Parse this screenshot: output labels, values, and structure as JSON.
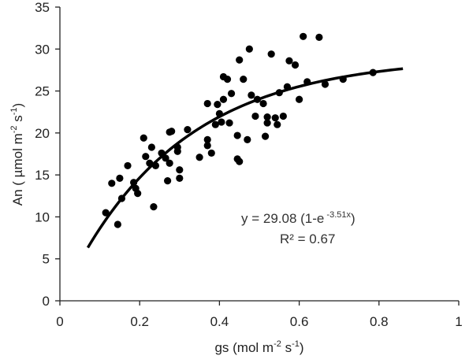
{
  "chart_data": {
    "type": "scatter",
    "title": "",
    "xlabel": {
      "base": "gs (mol m",
      "sup1": "-2",
      "mid": " s",
      "sup2": "-1",
      "end": ")"
    },
    "ylabel": {
      "base": "An ( µmol m",
      "sup1": "-2",
      "mid": " s",
      "sup2": "-1",
      "end": ")"
    },
    "xlim": [
      0,
      1
    ],
    "ylim": [
      0,
      35
    ],
    "xticks": [
      0,
      0.2,
      0.4,
      0.6,
      0.8,
      1
    ],
    "xtick_labels": [
      "0",
      "0.2",
      "0.4",
      "0.6",
      "0.8",
      "1"
    ],
    "yticks": [
      0,
      5,
      10,
      15,
      20,
      25,
      30,
      35
    ],
    "ytick_labels": [
      "0",
      "5",
      "10",
      "15",
      "20",
      "25",
      "30",
      "35"
    ],
    "grid": false,
    "legend": "none",
    "annotations": {
      "equation_prefix": "y = 29.08 (1-e",
      "equation_exponent": " -3.51x",
      "equation_suffix": ")",
      "r2_text": "R² = 0.67"
    },
    "fit": {
      "type": "line",
      "a": 29.08,
      "b": 3.51,
      "x_range": [
        0.07,
        0.86
      ]
    },
    "series": [
      {
        "points": [
          [
            0.115,
            10.5
          ],
          [
            0.13,
            14.0
          ],
          [
            0.145,
            9.1
          ],
          [
            0.15,
            14.6
          ],
          [
            0.155,
            12.2
          ],
          [
            0.17,
            16.1
          ],
          [
            0.185,
            14.1
          ],
          [
            0.19,
            13.4
          ],
          [
            0.195,
            12.8
          ],
          [
            0.21,
            19.4
          ],
          [
            0.215,
            17.2
          ],
          [
            0.225,
            16.4
          ],
          [
            0.23,
            18.3
          ],
          [
            0.235,
            11.2
          ],
          [
            0.24,
            16.1
          ],
          [
            0.255,
            17.6
          ],
          [
            0.265,
            17.0
          ],
          [
            0.27,
            14.3
          ],
          [
            0.275,
            16.4
          ],
          [
            0.275,
            20.1
          ],
          [
            0.28,
            20.2
          ],
          [
            0.295,
            18.3
          ],
          [
            0.295,
            17.8
          ],
          [
            0.3,
            15.6
          ],
          [
            0.3,
            14.6
          ],
          [
            0.32,
            20.4
          ],
          [
            0.35,
            17.1
          ],
          [
            0.37,
            23.5
          ],
          [
            0.37,
            19.2
          ],
          [
            0.37,
            18.5
          ],
          [
            0.38,
            17.6
          ],
          [
            0.39,
            21.0
          ],
          [
            0.395,
            23.4
          ],
          [
            0.4,
            22.3
          ],
          [
            0.405,
            21.3
          ],
          [
            0.41,
            24.0
          ],
          [
            0.41,
            26.7
          ],
          [
            0.42,
            26.4
          ],
          [
            0.425,
            21.2
          ],
          [
            0.43,
            24.7
          ],
          [
            0.445,
            19.7
          ],
          [
            0.445,
            16.9
          ],
          [
            0.45,
            16.6
          ],
          [
            0.45,
            28.7
          ],
          [
            0.46,
            26.4
          ],
          [
            0.47,
            19.2
          ],
          [
            0.475,
            30.0
          ],
          [
            0.48,
            24.5
          ],
          [
            0.49,
            22.0
          ],
          [
            0.495,
            24.0
          ],
          [
            0.51,
            23.5
          ],
          [
            0.515,
            19.6
          ],
          [
            0.52,
            21.9
          ],
          [
            0.52,
            21.2
          ],
          [
            0.53,
            29.4
          ],
          [
            0.54,
            21.8
          ],
          [
            0.545,
            21.0
          ],
          [
            0.55,
            24.8
          ],
          [
            0.56,
            22.0
          ],
          [
            0.57,
            25.5
          ],
          [
            0.575,
            28.6
          ],
          [
            0.59,
            28.1
          ],
          [
            0.6,
            24.0
          ],
          [
            0.61,
            31.5
          ],
          [
            0.62,
            26.1
          ],
          [
            0.65,
            31.4
          ],
          [
            0.665,
            25.8
          ],
          [
            0.71,
            26.4
          ],
          [
            0.785,
            27.2
          ]
        ]
      }
    ]
  }
}
